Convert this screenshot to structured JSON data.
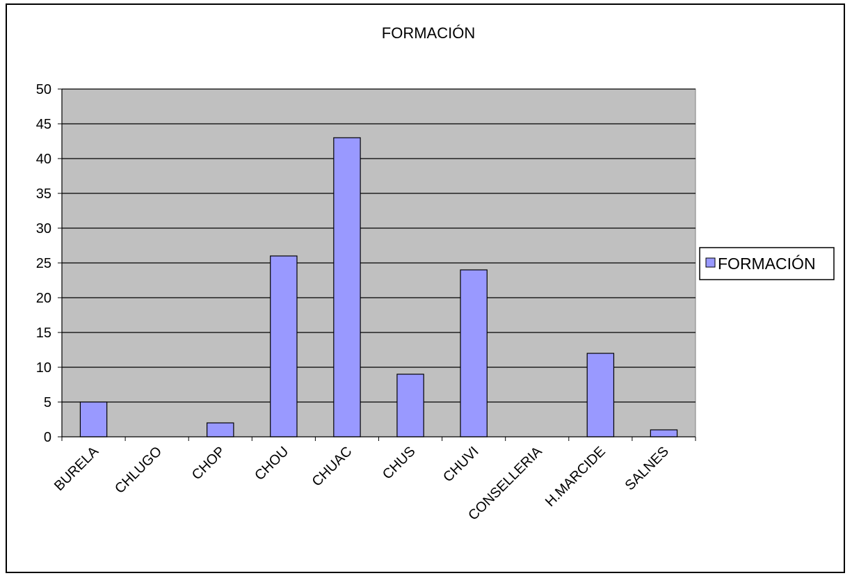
{
  "chart_data": {
    "type": "bar",
    "title": "FORMACIÓN",
    "xlabel": "",
    "ylabel": "",
    "categories": [
      "BURELA",
      "CHLUGO",
      "CHOP",
      "CHOU",
      "CHUAC",
      "CHUS",
      "CHUVI",
      "CONSELLERIA",
      "H.MARCIDE",
      "SALNES"
    ],
    "series": [
      {
        "name": "FORMACIÓN",
        "values": [
          5,
          0,
          2,
          26,
          43,
          9,
          24,
          0,
          12,
          1
        ]
      }
    ],
    "ylim": [
      0,
      50
    ],
    "yticks": [
      "0",
      "5",
      "10",
      "15",
      "20",
      "25",
      "30",
      "35",
      "40",
      "45",
      "50"
    ],
    "grid": true,
    "legend_position": "right",
    "colors": {
      "bar_fill": "#9999ff",
      "plot_background": "#c0c0c0",
      "gridline": "#000000"
    }
  }
}
